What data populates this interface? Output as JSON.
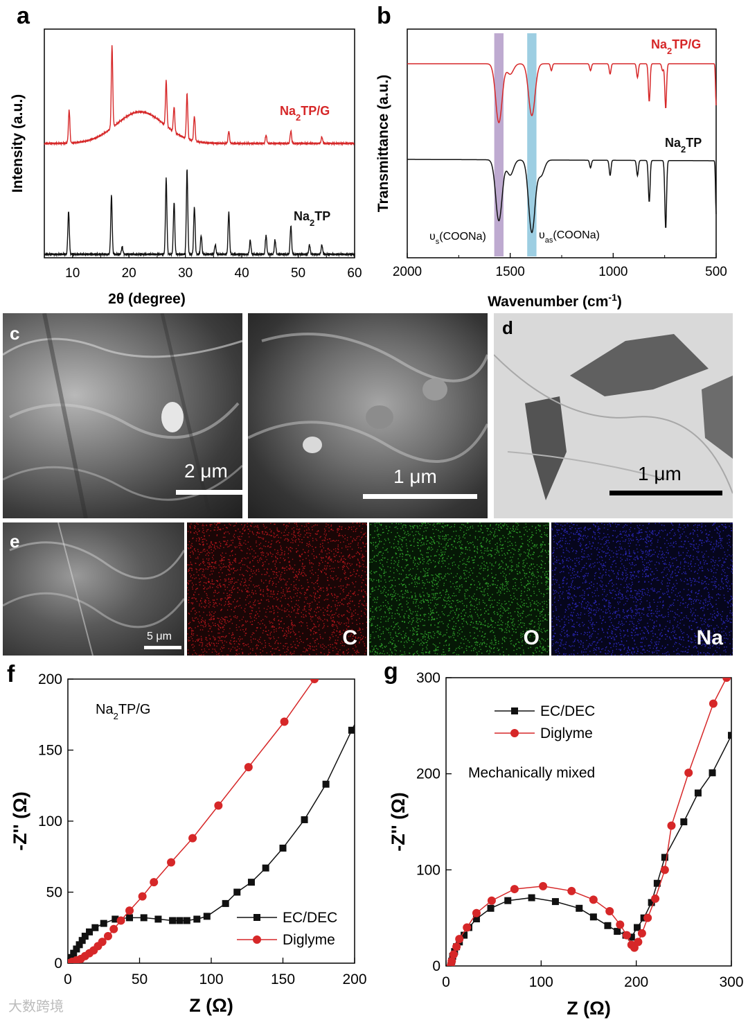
{
  "panel_labels": {
    "a": "a",
    "b": "b",
    "c": "c",
    "d": "d",
    "e": "e",
    "f": "f",
    "g": "g"
  },
  "colors": {
    "red": "#d62728",
    "black": "#111111",
    "purple_band": "#b39bc8",
    "blue_band": "#8cc6dd"
  },
  "images": {
    "c_left": {
      "scale": "2 μm",
      "icon": "sem-image"
    },
    "c_right": {
      "scale": "1 μm",
      "icon": "sem-image"
    },
    "d": {
      "scale": "1 μm",
      "icon": "tem-image"
    },
    "e": {
      "scale": "5 μm",
      "icon": "sem-image"
    },
    "maps": [
      {
        "label": "C",
        "color": "#b0151a"
      },
      {
        "label": "O",
        "color": "#2fa02a"
      },
      {
        "label": "Na",
        "color": "#2a27b8"
      }
    ]
  },
  "watermark": "大数跨境",
  "chart_data": [
    {
      "id": "a",
      "type": "line",
      "xlabel": "2θ (degree)",
      "ylabel": "Intensity (a.u.)",
      "xlim": [
        5,
        60
      ],
      "xticks": [
        10,
        20,
        30,
        40,
        50,
        60
      ],
      "series": [
        {
          "name": "Na2TP/G",
          "color": "#d62728",
          "peaks": [
            [
              9.4,
              0.4
            ],
            [
              17.0,
              1.0
            ],
            [
              26.6,
              0.55
            ],
            [
              28.0,
              0.3
            ],
            [
              30.3,
              0.55
            ],
            [
              31.6,
              0.3
            ],
            [
              37.7,
              0.15
            ],
            [
              44.3,
              0.1
            ],
            [
              48.7,
              0.15
            ],
            [
              54.2,
              0.08
            ]
          ],
          "hump": [
            22,
            6,
            0.38
          ]
        },
        {
          "name": "Na2TP",
          "color": "#111111",
          "peaks": [
            [
              9.3,
              0.45
            ],
            [
              16.9,
              0.62
            ],
            [
              18.8,
              0.08
            ],
            [
              26.6,
              0.8
            ],
            [
              28.0,
              0.55
            ],
            [
              30.3,
              0.9
            ],
            [
              31.6,
              0.5
            ],
            [
              32.8,
              0.2
            ],
            [
              35.3,
              0.1
            ],
            [
              37.7,
              0.45
            ],
            [
              41.5,
              0.15
            ],
            [
              44.3,
              0.2
            ],
            [
              45.9,
              0.15
            ],
            [
              48.7,
              0.3
            ],
            [
              52.0,
              0.1
            ],
            [
              54.2,
              0.1
            ]
          ]
        }
      ]
    },
    {
      "id": "b",
      "type": "line",
      "xlabel": "Wavenumber (cm-1)",
      "ylabel": "Transmittance (a.u.)",
      "xlim": [
        2000,
        500
      ],
      "xticks": [
        2000,
        1500,
        1000,
        500
      ],
      "bands": [
        {
          "center": 1555,
          "width": 45,
          "color": "#b39bc8"
        },
        {
          "center": 1395,
          "width": 45,
          "color": "#8cc6dd"
        }
      ],
      "annotations": [
        "υs(COONa)",
        "υas(COONa)"
      ],
      "series": [
        {
          "name": "Na2TP/G",
          "color": "#d62728",
          "dips": [
            [
              1555,
              0.85
            ],
            [
              1395,
              0.75
            ],
            [
              1500,
              0.15
            ],
            [
              1300,
              0.1
            ],
            [
              1110,
              0.1
            ],
            [
              1015,
              0.15
            ],
            [
              882,
              0.2
            ],
            [
              825,
              0.55
            ],
            [
              760,
              0.1
            ],
            [
              745,
              0.65
            ],
            [
              500,
              0.6
            ]
          ]
        },
        {
          "name": "Na2TP",
          "color": "#111111",
          "dips": [
            [
              1555,
              0.8
            ],
            [
              1500,
              0.2
            ],
            [
              1395,
              0.95
            ],
            [
              1350,
              0.2
            ],
            [
              1110,
              0.1
            ],
            [
              1015,
              0.2
            ],
            [
              882,
              0.2
            ],
            [
              825,
              0.55
            ],
            [
              745,
              0.9
            ],
            [
              500,
              0.7
            ]
          ]
        }
      ]
    },
    {
      "id": "f",
      "type": "scatter",
      "title": "Na2TP/G",
      "xlabel": "Z (Ω)",
      "ylabel": "-Z'' (Ω)",
      "xlim": [
        0,
        200
      ],
      "ylim": [
        0,
        200
      ],
      "xticks": [
        0,
        50,
        100,
        150,
        200
      ],
      "yticks": [
        0,
        50,
        100,
        150,
        200
      ],
      "series": [
        {
          "name": "EC/DEC",
          "color": "#111111",
          "marker": "square",
          "points": [
            [
              0,
              0
            ],
            [
              2,
              4
            ],
            [
              4,
              7
            ],
            [
              6,
              10
            ],
            [
              8,
              13
            ],
            [
              10,
              16
            ],
            [
              12,
              19
            ],
            [
              15,
              22
            ],
            [
              19,
              25
            ],
            [
              25,
              28
            ],
            [
              33,
              31
            ],
            [
              43,
              32
            ],
            [
              53,
              32
            ],
            [
              63,
              31
            ],
            [
              73,
              30
            ],
            [
              78,
              30
            ],
            [
              83,
              30
            ],
            [
              90,
              31
            ],
            [
              97,
              33
            ],
            [
              110,
              42
            ],
            [
              118,
              50
            ],
            [
              128,
              57
            ],
            [
              138,
              67
            ],
            [
              150,
              81
            ],
            [
              165,
              101
            ],
            [
              180,
              126
            ],
            [
              198,
              164
            ],
            [
              205,
              178
            ]
          ]
        },
        {
          "name": "Diglyme",
          "color": "#d62728",
          "marker": "circle",
          "points": [
            [
              0,
              0
            ],
            [
              3,
              1
            ],
            [
              6,
              2
            ],
            [
              9,
              3
            ],
            [
              12,
              5
            ],
            [
              15,
              7
            ],
            [
              18,
              9
            ],
            [
              21,
              12
            ],
            [
              24,
              15
            ],
            [
              28,
              19
            ],
            [
              32,
              24
            ],
            [
              37,
              30
            ],
            [
              43,
              37
            ],
            [
              52,
              47
            ],
            [
              60,
              57
            ],
            [
              72,
              71
            ],
            [
              87,
              88
            ],
            [
              105,
              111
            ],
            [
              126,
              138
            ],
            [
              151,
              170
            ],
            [
              172,
              200
            ]
          ]
        }
      ]
    },
    {
      "id": "g",
      "type": "scatter",
      "title": "Mechanically mixed",
      "xlabel": "Z (Ω)",
      "ylabel": "-Z'' (Ω)",
      "xlim": [
        0,
        300
      ],
      "ylim": [
        0,
        300
      ],
      "xticks": [
        0,
        100,
        200,
        300
      ],
      "yticks": [
        0,
        100,
        200,
        300
      ],
      "series": [
        {
          "name": "EC/DEC",
          "color": "#111111",
          "marker": "square",
          "points": [
            [
              5,
              0
            ],
            [
              6,
              5
            ],
            [
              7,
              10
            ],
            [
              9,
              15
            ],
            [
              11,
              20
            ],
            [
              14,
              25
            ],
            [
              19,
              32
            ],
            [
              24,
              40
            ],
            [
              32,
              49
            ],
            [
              47,
              60
            ],
            [
              65,
              68
            ],
            [
              90,
              71
            ],
            [
              115,
              67
            ],
            [
              140,
              60
            ],
            [
              155,
              51
            ],
            [
              170,
              42
            ],
            [
              180,
              36
            ],
            [
              189,
              32
            ],
            [
              195,
              30
            ],
            [
              201,
              40
            ],
            [
              208,
              50
            ],
            [
              216,
              66
            ],
            [
              222,
              86
            ],
            [
              230,
              113
            ],
            [
              250,
              150
            ],
            [
              265,
              180
            ],
            [
              280,
              201
            ],
            [
              300,
              240
            ]
          ]
        },
        {
          "name": "Diglyme",
          "color": "#d62728",
          "marker": "circle",
          "points": [
            [
              5,
              0
            ],
            [
              6,
              5
            ],
            [
              8,
              12
            ],
            [
              11,
              20
            ],
            [
              14,
              28
            ],
            [
              22,
              40
            ],
            [
              32,
              55
            ],
            [
              48,
              68
            ],
            [
              72,
              80
            ],
            [
              102,
              83
            ],
            [
              132,
              78
            ],
            [
              155,
              69
            ],
            [
              172,
              57
            ],
            [
              183,
              43
            ],
            [
              190,
              32
            ],
            [
              195,
              22
            ],
            [
              198,
              19
            ],
            [
              202,
              25
            ],
            [
              206,
              34
            ],
            [
              212,
              50
            ],
            [
              220,
              70
            ],
            [
              230,
              100
            ],
            [
              237,
              146
            ],
            [
              255,
              201
            ],
            [
              281,
              273
            ],
            [
              295,
              300
            ]
          ]
        }
      ]
    }
  ]
}
